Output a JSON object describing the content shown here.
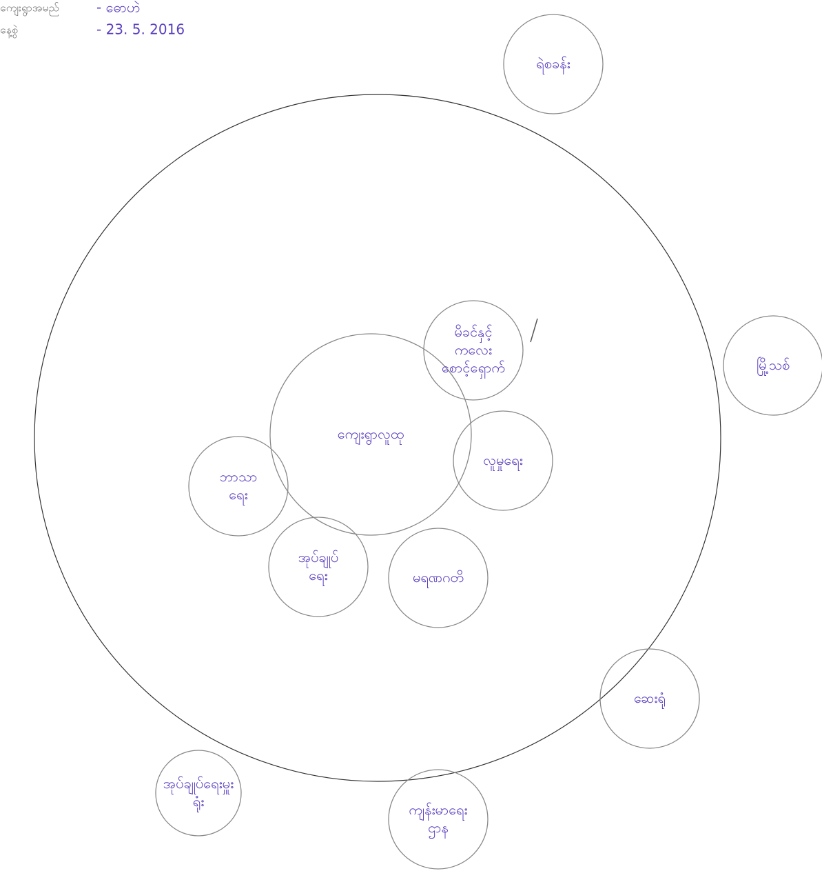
{
  "header": {
    "village_label": "ကျေးရွာအမည်",
    "village": "- ဓောဟဲ",
    "date_label": "နေ့စွဲ",
    "date": "- 23. 5. 2016"
  },
  "center": {
    "label": "ကျေးရွာလူထု"
  },
  "nodes": [
    {
      "label": "မိခင်နှင့် ကလေး စောင့်ရှောက်"
    },
    {
      "label": "လူမှုရေး"
    },
    {
      "label": "ဘာသာ ရေး"
    },
    {
      "label": "အုပ်ချုပ် ရေး"
    },
    {
      "label": "မရဏဂတိ"
    },
    {
      "label": "ရဲစခန်း"
    },
    {
      "label": "မြို့သစ်"
    },
    {
      "label": "ဆေးရုံ"
    },
    {
      "label": "အုပ်ချုပ်ရေးမှူး ရုံး"
    },
    {
      "label": "ကျန်းမာရေး ဌာန"
    }
  ]
}
